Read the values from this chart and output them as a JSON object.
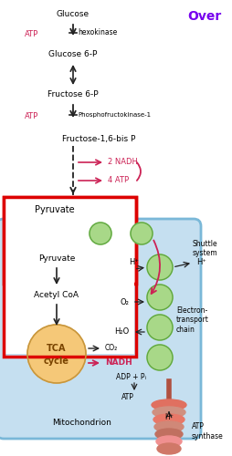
{
  "bg_color": "#ffffff",
  "title_text": "Over",
  "title_color": "#7700ee",
  "atp_color": "#cc2255",
  "arrow_color": "#222222",
  "mito_color": "#c5dff0",
  "mito_edge": "#7ab8d8",
  "red_rect_color": "#dd0000",
  "tca_color": "#f5c878",
  "tca_edge": "#c8963c",
  "green_fill": "#a8d888",
  "green_edge": "#60a840",
  "shuttle_text": "Shuttle\nsystem",
  "electron_text": "Electron-\ntransport\nchain",
  "atp_synthase_text": "ATP\nsynthase",
  "mitochondrion_text": "Mitochondrion"
}
